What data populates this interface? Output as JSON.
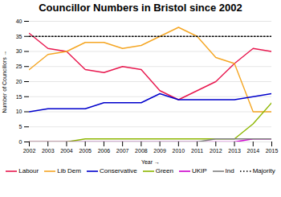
{
  "chart_data": {
    "type": "line",
    "title": "Councillor Numbers in Bristol since 2002",
    "xlabel": "Year",
    "ylabel": "Number of Councillors",
    "x": [
      2002,
      2003,
      2004,
      2005,
      2006,
      2007,
      2008,
      2009,
      2010,
      2011,
      2012,
      2013,
      2014,
      2015
    ],
    "series": [
      {
        "name": "Labour",
        "color": "#e8174e",
        "values": [
          36,
          31,
          30,
          24,
          23,
          25,
          24,
          17,
          14,
          17,
          20,
          26,
          31,
          30
        ]
      },
      {
        "name": "Lib Dem",
        "color": "#f5a623",
        "values": [
          24,
          29,
          30,
          33,
          33,
          31,
          32,
          35,
          38,
          35,
          28,
          26,
          10,
          10
        ]
      },
      {
        "name": "Conservative",
        "color": "#0000cc",
        "values": [
          10,
          11,
          11,
          11,
          13,
          13,
          13,
          16,
          14,
          14,
          14,
          14,
          15,
          16
        ]
      },
      {
        "name": "Green",
        "color": "#8db600",
        "values": [
          0,
          0,
          0,
          1,
          1,
          1,
          1,
          1,
          1,
          1,
          1,
          1,
          6,
          13
        ]
      },
      {
        "name": "UKIP",
        "color": "#cc00cc",
        "values": [
          0,
          0,
          0,
          0,
          0,
          0,
          0,
          0,
          0,
          0,
          0,
          0,
          1,
          1
        ]
      },
      {
        "name": "Ind",
        "color": "#808080",
        "values": [
          0,
          0,
          0,
          0,
          0,
          0,
          0,
          0,
          0,
          0,
          1,
          1,
          1,
          1
        ]
      },
      {
        "name": "Majority",
        "color": "#000000",
        "line_style": "dotted",
        "values": [
          35,
          35,
          35,
          35,
          35,
          35,
          35,
          35,
          35,
          35,
          35,
          35,
          35,
          35
        ]
      }
    ],
    "xlim": [
      2002,
      2015
    ],
    "xticks": [
      2002,
      2003,
      2004,
      2005,
      2006,
      2007,
      2008,
      2009,
      2010,
      2011,
      2012,
      2013,
      2014,
      2015
    ],
    "ylim": [
      0,
      40
    ],
    "yticks": [
      0,
      5,
      10,
      15,
      20,
      25,
      30,
      35,
      40
    ],
    "grid": true,
    "legend": "bottom"
  }
}
